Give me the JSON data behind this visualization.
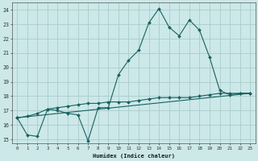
{
  "xlabel": "Humidex (Indice chaleur)",
  "bg_color": "#cce8e8",
  "grid_color": "#aacccc",
  "line_color": "#1a6060",
  "xlim": [
    -0.5,
    23.5
  ],
  "ylim": [
    14.7,
    24.5
  ],
  "xticks": [
    0,
    1,
    2,
    3,
    4,
    5,
    6,
    7,
    8,
    9,
    10,
    11,
    12,
    13,
    14,
    15,
    16,
    17,
    18,
    19,
    20,
    21,
    22,
    23
  ],
  "yticks": [
    15,
    16,
    17,
    18,
    19,
    20,
    21,
    22,
    23,
    24
  ],
  "line1_x": [
    0,
    1,
    2,
    3,
    4,
    5,
    6,
    7,
    8,
    9,
    10,
    11,
    12,
    13,
    14,
    15,
    16,
    17,
    18,
    19,
    20,
    21,
    22,
    23
  ],
  "line1_y": [
    16.5,
    15.3,
    15.2,
    17.1,
    17.0,
    16.8,
    16.7,
    14.9,
    17.2,
    17.2,
    19.5,
    20.5,
    21.2,
    23.1,
    24.1,
    22.8,
    22.2,
    23.3,
    22.6,
    20.7,
    18.4,
    18.1,
    18.2,
    18.2
  ],
  "line2_x": [
    0,
    1,
    2,
    3,
    4,
    5,
    6,
    7,
    8,
    9,
    10,
    11,
    12,
    13,
    14,
    15,
    16,
    17,
    18,
    19,
    20,
    21,
    22,
    23
  ],
  "line2_y": [
    16.5,
    16.6,
    16.8,
    17.1,
    17.2,
    17.3,
    17.4,
    17.5,
    17.5,
    17.6,
    17.6,
    17.6,
    17.7,
    17.8,
    17.9,
    17.9,
    17.9,
    17.9,
    18.0,
    18.1,
    18.2,
    18.2,
    18.2,
    18.2
  ],
  "line3_x": [
    0,
    23
  ],
  "line3_y": [
    16.5,
    18.2
  ]
}
